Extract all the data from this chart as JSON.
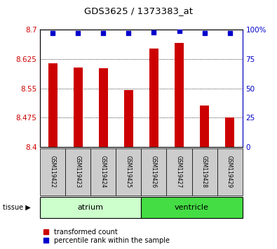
{
  "title": "GDS3625 / 1373383_at",
  "samples": [
    "GSM119422",
    "GSM119423",
    "GSM119424",
    "GSM119425",
    "GSM119426",
    "GSM119427",
    "GSM119428",
    "GSM119429"
  ],
  "transformed_count": [
    8.615,
    8.603,
    8.601,
    8.545,
    8.653,
    8.667,
    8.507,
    8.475
  ],
  "percentile_rank": [
    97,
    97,
    97,
    97,
    98,
    99,
    97,
    97
  ],
  "ylim_left": [
    8.4,
    8.7
  ],
  "yticks_left": [
    8.4,
    8.475,
    8.55,
    8.625,
    8.7
  ],
  "yticks_right": [
    0,
    25,
    50,
    75,
    100
  ],
  "ylim_right": [
    0,
    100
  ],
  "bar_color": "#cc0000",
  "dot_color": "#0000cc",
  "tissue_groups": [
    {
      "label": "atrium",
      "samples": [
        0,
        1,
        2,
        3
      ],
      "color": "#ccffcc"
    },
    {
      "label": "ventricle",
      "samples": [
        4,
        5,
        6,
        7
      ],
      "color": "#44dd44"
    }
  ],
  "tissue_label": "tissue",
  "legend_labels": [
    "transformed count",
    "percentile rank within the sample"
  ],
  "left_axis_color": "#cc0000",
  "right_axis_color": "#0000cc",
  "background_xtick": "#cccccc"
}
